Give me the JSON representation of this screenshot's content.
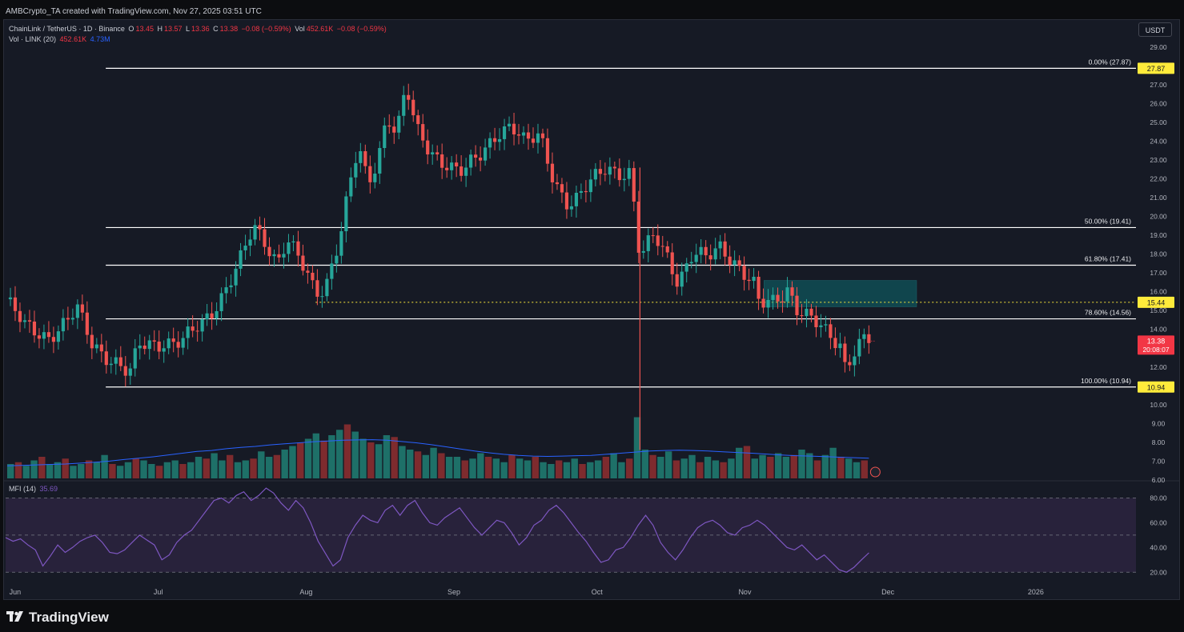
{
  "credit": "AMBCrypto_TA created with TradingView.com, Nov 27, 2025 03:51 UTC",
  "legend": {
    "symbol": "ChainLink / TetherUS · 1D · Binance",
    "o_label": "O",
    "o": "13.45",
    "h_label": "H",
    "h": "13.57",
    "l_label": "L",
    "l": "13.36",
    "c_label": "C",
    "c": "13.38",
    "chg": "−0.08 (−0.59%)",
    "vol_label": "Vol",
    "vol": "452.61K",
    "vol_chg": "−0.08 (−0.59%)",
    "vol_row_label": "Vol · LINK (20)",
    "vol_value": "452.61K",
    "vol_ma": "4.73M",
    "mfi_label": "MFI (14)",
    "mfi_value": "35.69"
  },
  "currency_badge": "USDT",
  "colors": {
    "background": "#161a25",
    "up": "#26a69a",
    "down": "#ef5350",
    "vol_up": "#1f7a70",
    "vol_down": "#8a2e30",
    "fib_line": "#ffffff",
    "support_line": "#ffeb3b",
    "zone": "#0f4d55",
    "vol_ma": "#2962ff",
    "mfi_line": "#7e57c2",
    "mfi_band": "#2b2540",
    "current_price": "#f23645",
    "label_yellow": "#ffeb3b"
  },
  "footer": {
    "brand": "TradingView",
    "logo_icon": "tradingview-logo-icon"
  },
  "chart_data": {
    "type": "candlestick",
    "symbol": "LINK/USDT",
    "timeframe": "1D",
    "ylim": [
      6.0,
      29.5
    ],
    "y_ticks": [
      "6.00",
      "7.00",
      "8.00",
      "9.00",
      "10.00",
      "11.00",
      "12.00",
      "13.00",
      "14.00",
      "15.00",
      "16.00",
      "17.00",
      "18.00",
      "19.00",
      "20.00",
      "21.00",
      "22.00",
      "23.00",
      "24.00",
      "25.00",
      "26.00",
      "27.00",
      "28.00",
      "29.00"
    ],
    "x_labels": [
      {
        "label": "Jun",
        "date": "2025-06-01"
      },
      {
        "label": "Jul",
        "date": "2025-07-01"
      },
      {
        "label": "Aug",
        "date": "2025-08-01"
      },
      {
        "label": "Sep",
        "date": "2025-09-01"
      },
      {
        "label": "Oct",
        "date": "2025-10-01"
      },
      {
        "label": "Nov",
        "date": "2025-11-01"
      },
      {
        "label": "Dec",
        "date": "2025-12-01"
      },
      {
        "label": "2026",
        "date": "2026-01-01"
      }
    ],
    "xlim": [
      "2025-05-30",
      "2026-01-22"
    ],
    "price_series": [
      [
        "2025-05-30",
        15.6
      ],
      [
        "2025-06-03",
        14.1
      ],
      [
        "2025-06-08",
        13.7
      ],
      [
        "2025-06-12",
        14.4
      ],
      [
        "2025-06-14",
        15.0
      ],
      [
        "2025-06-17",
        13.3
      ],
      [
        "2025-06-22",
        12.3
      ],
      [
        "2025-06-25",
        11.5
      ],
      [
        "2025-06-27",
        13.1
      ],
      [
        "2025-07-02",
        13.4
      ],
      [
        "2025-07-06",
        13.3
      ],
      [
        "2025-07-10",
        14.2
      ],
      [
        "2025-07-13",
        15.3
      ],
      [
        "2025-07-18",
        17.5
      ],
      [
        "2025-07-21",
        19.3
      ],
      [
        "2025-07-23",
        18.8
      ],
      [
        "2025-07-26",
        17.7
      ],
      [
        "2025-07-28",
        18.9
      ],
      [
        "2025-07-31",
        17.4
      ],
      [
        "2025-08-03",
        15.8
      ],
      [
        "2025-08-05",
        16.3
      ],
      [
        "2025-08-08",
        19.0
      ],
      [
        "2025-08-10",
        21.5
      ],
      [
        "2025-08-12",
        23.6
      ],
      [
        "2025-08-14",
        21.5
      ],
      [
        "2025-08-16",
        23.0
      ],
      [
        "2025-08-18",
        25.5
      ],
      [
        "2025-08-20",
        24.6
      ],
      [
        "2025-08-22",
        27.0
      ],
      [
        "2025-08-24",
        24.5
      ],
      [
        "2025-08-27",
        23.3
      ],
      [
        "2025-08-30",
        23.0
      ],
      [
        "2025-09-03",
        22.4
      ],
      [
        "2025-09-07",
        23.2
      ],
      [
        "2025-09-10",
        24.5
      ],
      [
        "2025-09-13",
        25.0
      ],
      [
        "2025-09-16",
        23.8
      ],
      [
        "2025-09-19",
        24.2
      ],
      [
        "2025-09-22",
        22.0
      ],
      [
        "2025-09-25",
        20.7
      ],
      [
        "2025-09-27",
        20.9
      ],
      [
        "2025-09-30",
        21.8
      ],
      [
        "2025-10-03",
        22.7
      ],
      [
        "2025-10-06",
        22.4
      ],
      [
        "2025-10-08",
        22.3
      ],
      [
        "2025-10-10",
        17.6
      ],
      [
        "2025-10-13",
        19.0
      ],
      [
        "2025-10-16",
        17.9
      ],
      [
        "2025-10-18",
        16.6
      ],
      [
        "2025-10-21",
        17.9
      ],
      [
        "2025-10-24",
        17.7
      ],
      [
        "2025-10-27",
        18.5
      ],
      [
        "2025-10-30",
        17.6
      ],
      [
        "2025-11-03",
        16.2
      ],
      [
        "2025-11-04",
        15.2
      ],
      [
        "2025-11-07",
        15.5
      ],
      [
        "2025-11-10",
        16.3
      ],
      [
        "2025-11-12",
        15.1
      ],
      [
        "2025-11-15",
        14.4
      ],
      [
        "2025-11-18",
        13.8
      ],
      [
        "2025-11-21",
        13.3
      ],
      [
        "2025-11-22",
        12.2
      ],
      [
        "2025-11-24",
        12.9
      ],
      [
        "2025-11-26",
        13.45
      ],
      [
        "2025-11-27",
        13.38
      ]
    ],
    "last_price": 13.38,
    "countdown": "20:08:07",
    "fibonacci": [
      {
        "label": "0.00% (27.87)",
        "value": 27.87
      },
      {
        "label": "50.00% (19.41)",
        "value": 19.41
      },
      {
        "label": "61.80% (17.41)",
        "value": 17.41
      },
      {
        "label": "78.60% (14.56)",
        "value": 14.56
      },
      {
        "label": "100.00% (10.94)",
        "value": 10.94
      }
    ],
    "fib_start": "2025-06-20",
    "fib_end": "2026-01-22",
    "axis_labels": [
      {
        "text": "27.87",
        "value": 27.87,
        "style": "yellow"
      },
      {
        "text": "15.44",
        "value": 15.44,
        "style": "yellow"
      },
      {
        "text": "10.94",
        "value": 10.94,
        "style": "yellow"
      }
    ],
    "support_level": {
      "value": 15.44,
      "from": "2025-08-03",
      "to": "2026-01-22"
    },
    "zone": {
      "from": "2025-11-05",
      "to": "2025-12-07",
      "low": 15.2,
      "high": 16.6
    },
    "volume": {
      "ylim": [
        0,
        40
      ],
      "values": [
        8,
        9,
        7,
        10,
        12,
        8,
        9,
        11,
        7,
        8,
        10,
        9,
        13,
        8,
        7,
        9,
        11,
        10,
        8,
        7,
        9,
        10,
        8,
        9,
        12,
        11,
        14,
        10,
        13,
        9,
        10,
        11,
        15,
        12,
        13,
        16,
        18,
        20,
        22,
        25,
        21,
        24,
        27,
        30,
        26,
        22,
        20,
        19,
        24,
        23,
        18,
        16,
        15,
        13,
        17,
        14,
        12,
        12,
        10,
        11,
        14,
        12,
        11,
        9,
        13,
        11,
        10,
        12,
        9,
        8,
        10,
        9,
        11,
        8,
        9,
        10,
        12,
        14,
        9,
        11,
        34,
        16,
        13,
        12,
        15,
        10,
        11,
        13,
        9,
        12,
        10,
        9,
        11,
        17,
        18,
        11,
        13,
        12,
        14,
        12,
        13,
        16,
        14,
        10,
        13,
        17,
        12,
        11,
        9,
        10
      ],
      "ma": [
        7,
        7.2,
        7.5,
        7.8,
        8,
        8.5,
        9,
        9.6,
        10.5,
        11.2,
        12,
        13,
        14,
        15,
        15.5,
        16.5,
        17.2,
        17.8,
        18.6,
        19.2,
        19.8,
        20.4,
        20.8,
        21.2,
        21.4,
        21.5,
        21.2,
        20.5,
        19.8,
        18.8,
        17.6,
        16.4,
        15.2,
        14.2,
        13.4,
        12.8,
        12.4,
        12.2,
        12.4,
        12.6,
        12.8,
        13.4,
        14,
        14.6,
        15.2,
        15.5,
        15.7,
        15.5,
        15.2,
        14.8,
        14.4,
        14.0,
        13.5,
        13.0,
        12.6,
        12.4,
        12.1,
        11.8,
        11.5,
        11.2
      ]
    },
    "mfi": {
      "ylim": [
        15,
        90
      ],
      "ticks": [
        "20.00",
        "40.00",
        "60.00",
        "80.00"
      ],
      "bands": {
        "upper": 80,
        "lower": 20,
        "mid": 50
      },
      "values": [
        48,
        45,
        47,
        42,
        38,
        25,
        33,
        42,
        36,
        40,
        45,
        48,
        50,
        44,
        36,
        35,
        38,
        44,
        50,
        46,
        42,
        30,
        34,
        44,
        50,
        54,
        62,
        70,
        78,
        80,
        76,
        82,
        85,
        78,
        82,
        88,
        84,
        76,
        70,
        78,
        72,
        60,
        45,
        35,
        25,
        30,
        48,
        58,
        66,
        62,
        60,
        70,
        74,
        66,
        74,
        78,
        68,
        60,
        58,
        64,
        68,
        72,
        64,
        56,
        50,
        56,
        62,
        60,
        52,
        42,
        48,
        58,
        62,
        70,
        74,
        68,
        60,
        52,
        45,
        36,
        28,
        30,
        38,
        40,
        48,
        58,
        66,
        58,
        44,
        36,
        30,
        38,
        48,
        56,
        60,
        62,
        58,
        52,
        50,
        56,
        58,
        62,
        58,
        52,
        46,
        40,
        38,
        42,
        36,
        30,
        34,
        28,
        22,
        20,
        24,
        30,
        35.69
      ]
    }
  }
}
